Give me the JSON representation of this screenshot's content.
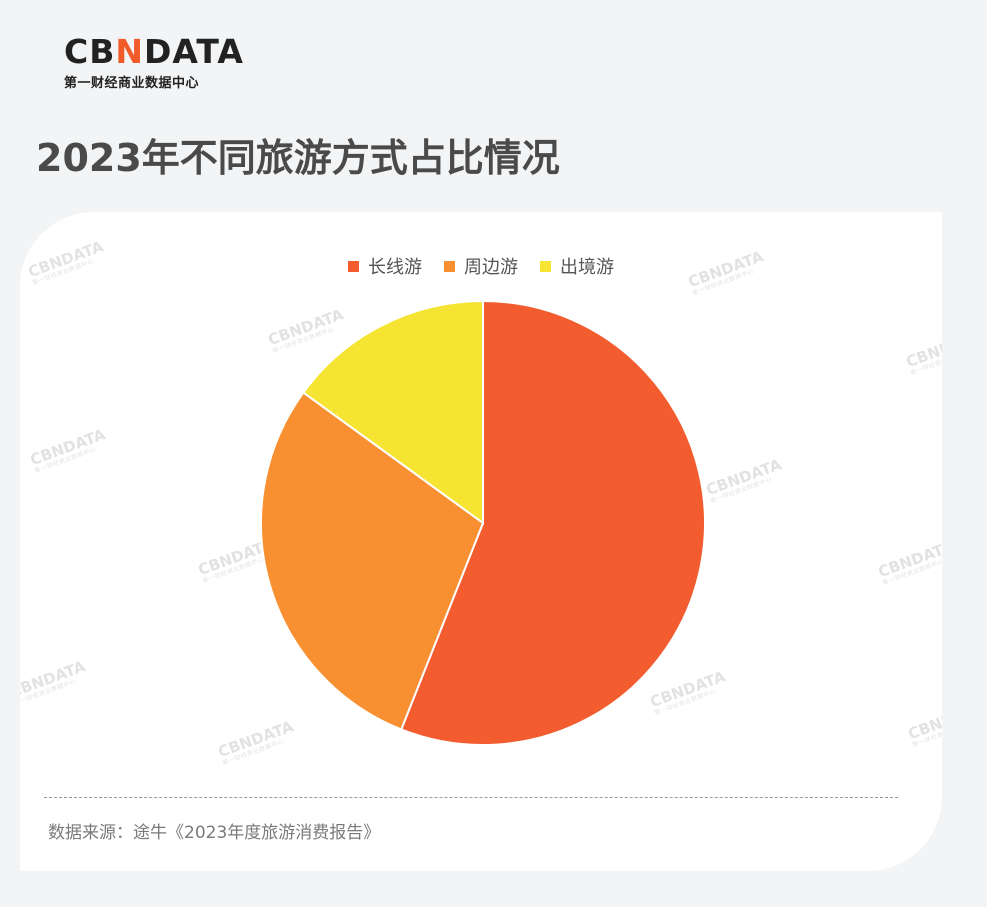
{
  "brand": {
    "logo_prefix": "CB",
    "logo_mark": "N",
    "logo_suffix": "DATA",
    "subtitle": "第一财经商业数据中心",
    "accent_color": "#f15a29"
  },
  "page": {
    "title": "2023年不同旅游方式占比情况",
    "source": "数据来源：途牛《2023年度旅游消费报告》"
  },
  "watermark": {
    "text": "CBNDATA",
    "subtext": "第一财经商业数据中心"
  },
  "chart_data": {
    "type": "pie",
    "title": "",
    "categories": [
      "长线游",
      "周边游",
      "出境游"
    ],
    "values": [
      56,
      29,
      15
    ],
    "colors": [
      "#f25c2e",
      "#f88f31",
      "#f5e532"
    ],
    "start_angle_deg": 0,
    "direction": "clockwise",
    "legend_position": "top-center"
  }
}
